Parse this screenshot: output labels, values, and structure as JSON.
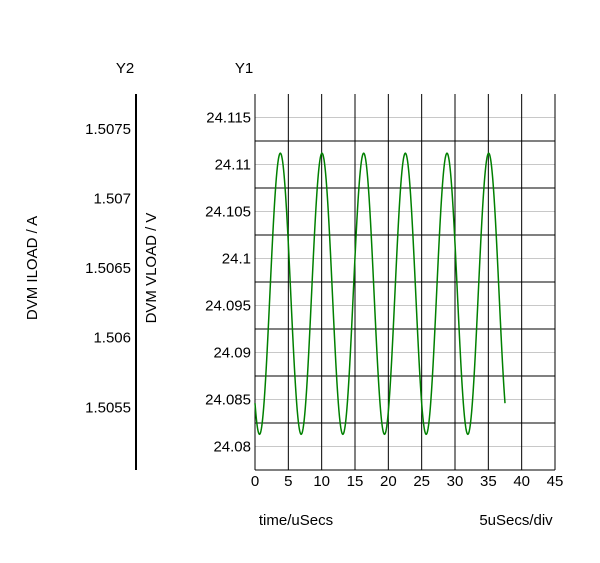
{
  "chart_data": {
    "type": "line",
    "x_axis": {
      "label": "time/uSecs",
      "range": [
        0,
        45
      ],
      "ticks": [
        0,
        5,
        10,
        15,
        20,
        25,
        30,
        35,
        40,
        45
      ],
      "tick_labels": [
        "0",
        "5",
        "10",
        "15",
        "20",
        "25",
        "30",
        "35",
        "40",
        "45"
      ],
      "scale_note": "5uSecs/div"
    },
    "y1_axis": {
      "header": "Y1",
      "label": "DVM VLOAD / V",
      "range": [
        24.0775,
        24.1175
      ],
      "ticks": [
        24.08,
        24.085,
        24.09,
        24.095,
        24.1,
        24.105,
        24.11,
        24.115
      ],
      "tick_labels": [
        "24.08",
        "24.085",
        "24.09",
        "24.095",
        "24.1",
        "24.105",
        "24.11",
        "24.115"
      ]
    },
    "y2_axis": {
      "header": "Y2",
      "label": "DVM ILOAD / A",
      "range": [
        1.50505,
        1.50775
      ],
      "ticks": [
        1.5055,
        1.506,
        1.5065,
        1.507,
        1.5075
      ],
      "tick_labels": [
        "1.5055",
        "1.506",
        "1.5065",
        "1.507",
        "1.5075"
      ]
    },
    "grid": true,
    "series": [
      {
        "color": "#008000",
        "axis": "y1",
        "waveform": {
          "kind": "periodic",
          "period": 6.25,
          "min": 24.0813,
          "max": 24.1112,
          "x_start": 0,
          "x_end": 37.5,
          "first_peak_x": 3.8
        }
      }
    ]
  }
}
